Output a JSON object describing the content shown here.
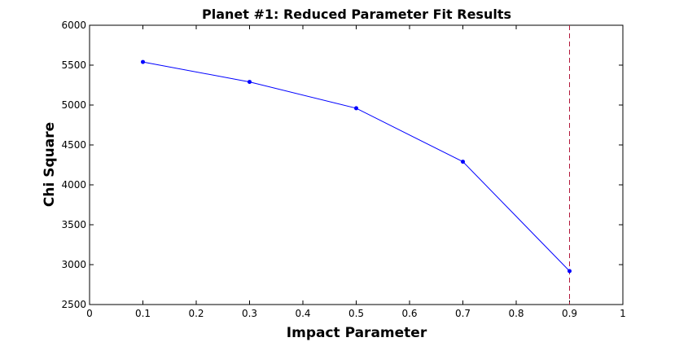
{
  "chart_data": {
    "type": "line",
    "title": "Planet #1: Reduced Parameter Fit Results",
    "xlabel": "Impact Parameter",
    "ylabel": "Chi Square",
    "xlim": [
      0,
      1
    ],
    "ylim": [
      2500,
      6000
    ],
    "xticks": [
      0,
      0.1,
      0.2,
      0.3,
      0.4,
      0.5,
      0.6,
      0.7,
      0.8,
      0.9,
      1
    ],
    "xtick_labels": [
      "0",
      "0.1",
      "0.2",
      "0.3",
      "0.4",
      "0.5",
      "0.6",
      "0.7",
      "0.8",
      "0.9",
      "1"
    ],
    "yticks": [
      2500,
      3000,
      3500,
      4000,
      4500,
      5000,
      5500,
      6000
    ],
    "ytick_labels": [
      "2500",
      "3000",
      "3500",
      "4000",
      "4500",
      "5000",
      "5500",
      "6000"
    ],
    "grid": false,
    "series": [
      {
        "x": [
          0.1,
          0.3,
          0.5,
          0.7,
          0.9
        ],
        "y": [
          5540,
          5290,
          4960,
          4290,
          2920
        ],
        "color": "#0000ff",
        "marker": "dot"
      }
    ],
    "vline": {
      "x": 0.9,
      "color": "#b2183a",
      "style": "dashed"
    }
  }
}
